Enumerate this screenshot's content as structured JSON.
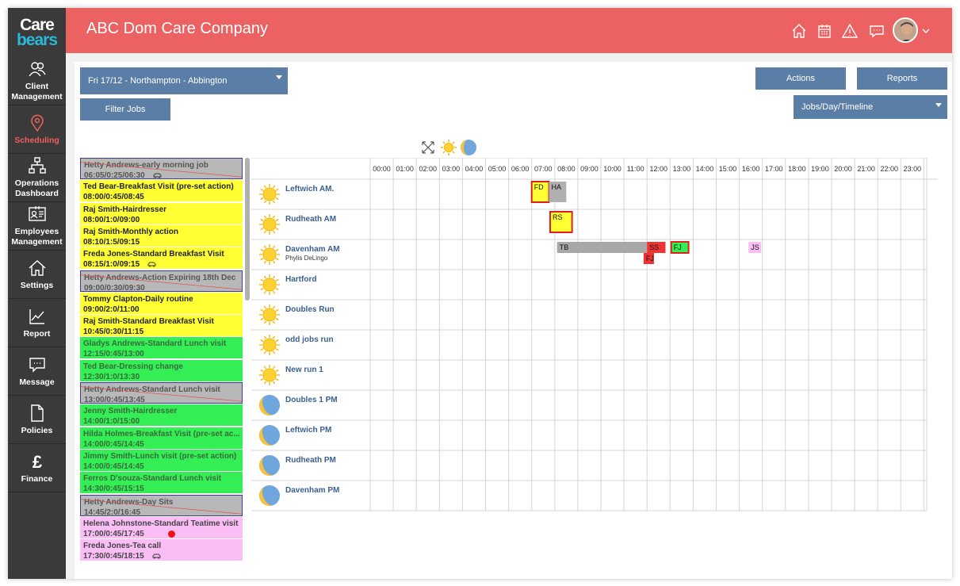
{
  "brand": {
    "line1": "Care",
    "line2": "bears"
  },
  "header": {
    "company": "ABC Dom Care Company"
  },
  "sidebar": [
    {
      "label1": "Client",
      "label2": "Management",
      "icon": "users-icon"
    },
    {
      "label1": "Scheduling",
      "label2": "",
      "icon": "map-pin-icon",
      "active": true
    },
    {
      "label1": "Operations",
      "label2": "Dashboard",
      "icon": "sitemap-icon"
    },
    {
      "label1": "Employees",
      "label2": "Management",
      "icon": "id-card-icon"
    },
    {
      "label1": "Settings",
      "label2": "",
      "icon": "home-icon"
    },
    {
      "label1": "Report",
      "label2": "",
      "icon": "line-chart-icon"
    },
    {
      "label1": "Message",
      "label2": "",
      "icon": "chat-icon"
    },
    {
      "label1": "Policies",
      "label2": "",
      "icon": "file-icon"
    },
    {
      "label1": "Finance",
      "label2": "",
      "icon": "pound-icon"
    }
  ],
  "toolbar": {
    "location_select": "Fri 17/12 - Northampton - Abbington",
    "filter": "Filter Jobs",
    "actions": "Actions",
    "reports": "Reports",
    "view_select": "Jobs/Day/Timeline"
  },
  "jobs": [
    {
      "title": "Hetty Andrews-early morning job",
      "time": "06:05/0:25/06:30",
      "color": "grey",
      "car": true
    },
    {
      "title": "Ted Bear-Breakfast Visit (pre-set action)",
      "time": "08:00/0:45/08:45",
      "color": "yellow"
    },
    {
      "title": "Raj Smith-Hairdresser",
      "time": "08:00/1:0/09:00",
      "color": "yellow"
    },
    {
      "title": "Raj Smith-Monthly action",
      "time": "08:10/1:5/09:15",
      "color": "yellow"
    },
    {
      "title": "Freda Jones-Standard Breakfast Visit",
      "time": "08:15/1:0/09:15",
      "color": "yellow",
      "car": true
    },
    {
      "title": "Hetty Andrews-Action Expiring 18th Dec",
      "time": "09:00/0:30/09:30",
      "color": "grey"
    },
    {
      "title": "Tommy Clapton-Daily routine",
      "time": "09:00/2:0/11:00",
      "color": "yellow"
    },
    {
      "title": "Raj Smith-Standard Breakfast Visit",
      "time": "10:45/0:30/11:15",
      "color": "yellow"
    },
    {
      "title": "Gladys Andrews-Standard Lunch visit",
      "time": "12:15/0:45/13:00",
      "color": "green"
    },
    {
      "title": "Ted Bear-Dressing change",
      "time": "12:30/1:0/13:30",
      "color": "green"
    },
    {
      "title": "Hetty Andrews-Standard Lunch visit",
      "time": "13:00/0:45/13:45",
      "color": "grey"
    },
    {
      "title": "Jenny Smith-Hairdresser",
      "time": "14:00/1:0/15:00",
      "color": "green"
    },
    {
      "title": "Hilda Holmes-Breakfast Visit (pre-set ac...",
      "time": "14:00/0:45/14:45",
      "color": "green"
    },
    {
      "title": "Jimmy Smith-Lunch visit (pre-set action)",
      "time": "14:00/0:45/14:45",
      "color": "green"
    },
    {
      "title": "Ferros D'souza-Standard Lunch visit",
      "time": "14:30/0:45/15:15",
      "color": "green"
    },
    {
      "title": "Hetty Andrews-Day Sits",
      "time": "14:45/2:0/16:45",
      "color": "grey"
    },
    {
      "title": "Helena Johnstone-Standard Teatime visit",
      "time": "17:00/0:45/17:45",
      "color": "pink",
      "dot": true
    },
    {
      "title": "Freda Jones-Tea call",
      "time": "17:30/0:45/18:15",
      "color": "pink",
      "car": true
    }
  ],
  "hours": [
    "00:00",
    "01:00",
    "02:00",
    "03:00",
    "04:00",
    "05:00",
    "06:00",
    "07:00",
    "08:00",
    "09:00",
    "10:00",
    "11:00",
    "12:00",
    "13:00",
    "14:00",
    "15:00",
    "16:00",
    "17:00",
    "18:00",
    "19:00",
    "20:00",
    "21:00",
    "22:00",
    "23:00"
  ],
  "runs": [
    {
      "name": "Leftwich AM.",
      "icon": "sun",
      "blocks": [
        {
          "label": "FD",
          "start": 7.0,
          "end": 7.75,
          "bg": "#ffff33",
          "border": "#e02020",
          "row": 0
        },
        {
          "label": "HA",
          "start": 7.75,
          "end": 8.5,
          "bg": "#b0b0b0",
          "border": "#b0b0b0",
          "row": 0
        }
      ]
    },
    {
      "name": "Rudheath AM",
      "icon": "sun",
      "blocks": [
        {
          "label": "RS",
          "start": 7.8,
          "end": 8.75,
          "bg": "#ffff33",
          "border": "#e02020",
          "row": 0
        }
      ]
    },
    {
      "name": "Davenham AM",
      "sub": "Phylis DeLingo",
      "icon": "sun",
      "blocks": [
        {
          "label": "TB",
          "start": 8.1,
          "end": 12.0,
          "bg": "#a8a8a8",
          "border": "#a8a8a8",
          "row": 0
        },
        {
          "label": "SS",
          "start": 12.0,
          "end": 12.8,
          "bg": "#ee3333",
          "border": "#ee3333",
          "row": 0
        },
        {
          "label": "FJ",
          "start": 13.05,
          "end": 13.8,
          "bg": "#33ee55",
          "border": "#e02020",
          "row": 0
        },
        {
          "label": "JS",
          "start": 16.4,
          "end": 16.95,
          "bg": "#fbbdf5",
          "border": "#fbbdf5",
          "row": 0
        },
        {
          "label": "FJ",
          "start": 11.85,
          "end": 12.3,
          "bg": "#ee3333",
          "border": "#ee3333",
          "row": 1
        }
      ]
    },
    {
      "name": "Hartford",
      "icon": "sun",
      "blocks": []
    },
    {
      "name": "Doubles Run",
      "icon": "sun",
      "blocks": []
    },
    {
      "name": "odd jobs run",
      "icon": "sun",
      "blocks": []
    },
    {
      "name": "New run 1",
      "icon": "sun",
      "blocks": []
    },
    {
      "name": "Doubles 1 PM",
      "icon": "moon",
      "blocks": []
    },
    {
      "name": "Leftwich PM",
      "icon": "moon",
      "blocks": []
    },
    {
      "name": "Rudheath PM",
      "icon": "moon",
      "blocks": []
    },
    {
      "name": "Davenham PM",
      "icon": "moon",
      "blocks": []
    }
  ]
}
